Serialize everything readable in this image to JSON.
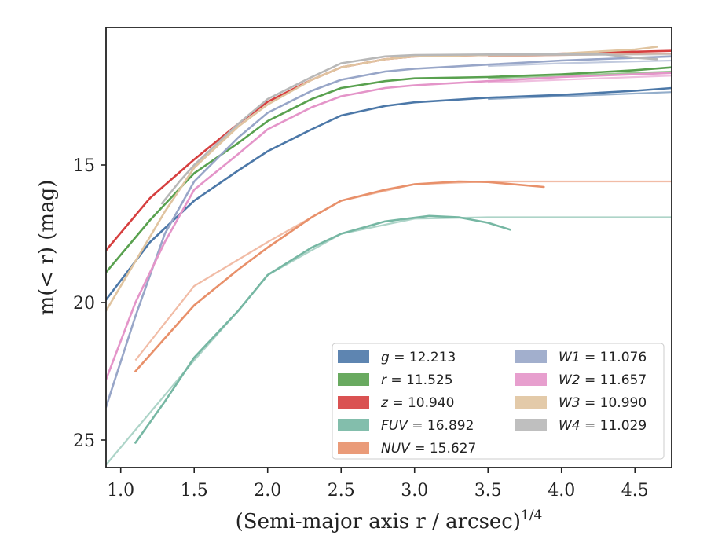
{
  "chart_data": {
    "type": "line",
    "title": "",
    "xlabel": "(Semi-major axis r / arcsec)",
    "xlabel_exponent": "1/4",
    "ylabel": "m(< r) (mag)",
    "xlim": [
      0.9,
      4.75
    ],
    "ylim": [
      26.0,
      10.0
    ],
    "y_inverted": true,
    "grid": false,
    "legend_position": "lower-right",
    "xticks": [
      1.0,
      1.5,
      2.0,
      2.5,
      3.0,
      3.5,
      4.0,
      4.5
    ],
    "xtick_labels": [
      "1.0",
      "1.5",
      "2.0",
      "2.5",
      "3.0",
      "3.5",
      "4.0",
      "4.5"
    ],
    "yticks": [
      15,
      20,
      25
    ],
    "ytick_labels": [
      "15",
      "20",
      "25"
    ],
    "series": [
      {
        "name": "g",
        "value": "12.213",
        "color": "#4c78a8",
        "points": [
          [
            0.9,
            19.9
          ],
          [
            1.2,
            17.8
          ],
          [
            1.5,
            16.3
          ],
          [
            1.8,
            15.2
          ],
          [
            2.0,
            14.5
          ],
          [
            2.3,
            13.7
          ],
          [
            2.5,
            13.2
          ],
          [
            2.8,
            12.85
          ],
          [
            3.0,
            12.72
          ],
          [
            3.5,
            12.55
          ],
          [
            4.0,
            12.45
          ],
          [
            4.5,
            12.3
          ],
          [
            4.75,
            12.2
          ]
        ],
        "faint_points": [
          [
            3.5,
            12.6
          ],
          [
            4.0,
            12.5
          ],
          [
            4.75,
            12.35
          ]
        ]
      },
      {
        "name": "r",
        "value": "11.525",
        "color": "#59a14f",
        "points": [
          [
            0.9,
            18.9
          ],
          [
            1.2,
            17.0
          ],
          [
            1.5,
            15.3
          ],
          [
            1.8,
            14.2
          ],
          [
            2.0,
            13.4
          ],
          [
            2.3,
            12.6
          ],
          [
            2.5,
            12.2
          ],
          [
            2.8,
            11.95
          ],
          [
            3.0,
            11.85
          ],
          [
            3.5,
            11.8
          ],
          [
            4.0,
            11.7
          ],
          [
            4.5,
            11.55
          ],
          [
            4.75,
            11.45
          ]
        ],
        "faint_points": [
          [
            3.5,
            11.85
          ],
          [
            4.0,
            11.75
          ],
          [
            4.75,
            11.6
          ]
        ]
      },
      {
        "name": "z",
        "value": "10.940",
        "color": "#d63f3f",
        "points": [
          [
            0.9,
            18.1
          ],
          [
            1.2,
            16.2
          ],
          [
            1.5,
            14.8
          ],
          [
            1.8,
            13.5
          ],
          [
            2.0,
            12.7
          ],
          [
            2.3,
            11.9
          ],
          [
            2.5,
            11.45
          ],
          [
            2.8,
            11.15
          ],
          [
            3.0,
            11.05
          ],
          [
            3.5,
            11.0
          ],
          [
            4.0,
            10.95
          ],
          [
            4.5,
            10.88
          ],
          [
            4.75,
            10.85
          ]
        ],
        "faint_points": [
          [
            3.5,
            11.05
          ],
          [
            4.0,
            11.0
          ],
          [
            4.75,
            10.95
          ]
        ]
      },
      {
        "name": "FUV",
        "value": "16.892",
        "color": "#76b7a3",
        "points": [
          [
            1.1,
            25.1
          ],
          [
            1.3,
            23.6
          ],
          [
            1.5,
            22.0
          ],
          [
            1.8,
            20.3
          ],
          [
            2.0,
            19.0
          ],
          [
            2.3,
            18.0
          ],
          [
            2.5,
            17.5
          ],
          [
            2.8,
            17.05
          ],
          [
            3.1,
            16.85
          ],
          [
            3.3,
            16.9
          ],
          [
            3.5,
            17.1
          ],
          [
            3.65,
            17.35
          ]
        ],
        "faint_points": [
          [
            0.9,
            25.9
          ],
          [
            1.2,
            24.0
          ],
          [
            1.5,
            22.1
          ],
          [
            1.8,
            20.3
          ],
          [
            2.0,
            19.0
          ],
          [
            2.5,
            17.5
          ],
          [
            3.0,
            16.95
          ],
          [
            3.5,
            16.9
          ],
          [
            4.0,
            16.9
          ],
          [
            4.75,
            16.9
          ]
        ]
      },
      {
        "name": "NUV",
        "value": "15.627",
        "color": "#e8906a",
        "points": [
          [
            1.1,
            22.5
          ],
          [
            1.3,
            21.3
          ],
          [
            1.5,
            20.1
          ],
          [
            1.8,
            18.8
          ],
          [
            2.0,
            18.0
          ],
          [
            2.3,
            16.9
          ],
          [
            2.5,
            16.3
          ],
          [
            2.8,
            15.9
          ],
          [
            3.0,
            15.7
          ],
          [
            3.3,
            15.6
          ],
          [
            3.5,
            15.62
          ],
          [
            3.88,
            15.8
          ]
        ],
        "faint_points": [
          [
            1.1,
            22.1
          ],
          [
            1.5,
            19.4
          ],
          [
            2.0,
            17.8
          ],
          [
            2.5,
            16.3
          ],
          [
            3.0,
            15.7
          ],
          [
            3.5,
            15.6
          ],
          [
            4.0,
            15.6
          ],
          [
            4.75,
            15.6
          ]
        ]
      },
      {
        "name": "W1",
        "value": "11.076",
        "color": "#98a6c8",
        "points": [
          [
            0.9,
            23.8
          ],
          [
            1.1,
            20.5
          ],
          [
            1.3,
            17.5
          ],
          [
            1.5,
            15.6
          ],
          [
            1.8,
            14.0
          ],
          [
            2.0,
            13.1
          ],
          [
            2.3,
            12.3
          ],
          [
            2.5,
            11.9
          ],
          [
            2.8,
            11.6
          ],
          [
            3.0,
            11.5
          ],
          [
            3.5,
            11.35
          ],
          [
            4.0,
            11.2
          ],
          [
            4.75,
            11.05
          ]
        ],
        "faint_points": [
          [
            3.5,
            11.4
          ],
          [
            4.0,
            11.3
          ],
          [
            4.75,
            11.2
          ]
        ]
      },
      {
        "name": "W2",
        "value": "11.657",
        "color": "#e495c9",
        "points": [
          [
            0.9,
            22.8
          ],
          [
            1.1,
            20.0
          ],
          [
            1.3,
            17.8
          ],
          [
            1.5,
            15.9
          ],
          [
            1.8,
            14.6
          ],
          [
            2.0,
            13.7
          ],
          [
            2.3,
            12.9
          ],
          [
            2.5,
            12.5
          ],
          [
            2.8,
            12.2
          ],
          [
            3.0,
            12.1
          ],
          [
            3.5,
            11.95
          ],
          [
            4.0,
            11.8
          ],
          [
            4.75,
            11.65
          ]
        ],
        "faint_points": [
          [
            3.5,
            12.0
          ],
          [
            4.0,
            11.9
          ],
          [
            4.75,
            11.75
          ]
        ]
      },
      {
        "name": "W3",
        "value": "10.990",
        "color": "#e0c4a0",
        "points": [
          [
            0.9,
            20.3
          ],
          [
            1.1,
            18.5
          ],
          [
            1.3,
            16.7
          ],
          [
            1.5,
            15.1
          ],
          [
            1.8,
            13.6
          ],
          [
            2.0,
            12.8
          ],
          [
            2.3,
            11.9
          ],
          [
            2.5,
            11.45
          ],
          [
            2.8,
            11.15
          ],
          [
            3.0,
            11.05
          ],
          [
            3.5,
            11.0
          ],
          [
            4.0,
            10.95
          ],
          [
            4.5,
            10.8
          ],
          [
            4.65,
            10.7
          ]
        ],
        "faint_points": [
          [
            3.5,
            11.05
          ],
          [
            4.0,
            11.0
          ],
          [
            4.75,
            10.95
          ]
        ]
      },
      {
        "name": "W4",
        "value": "11.029",
        "color": "#b8b8b8",
        "points": [
          [
            1.28,
            16.4
          ],
          [
            1.4,
            15.6
          ],
          [
            1.5,
            15.0
          ],
          [
            1.8,
            13.5
          ],
          [
            2.0,
            12.6
          ],
          [
            2.3,
            11.8
          ],
          [
            2.5,
            11.3
          ],
          [
            2.8,
            11.05
          ],
          [
            3.0,
            11.0
          ],
          [
            3.5,
            10.98
          ],
          [
            4.0,
            10.97
          ],
          [
            4.3,
            10.98
          ],
          [
            4.5,
            11.1
          ],
          [
            4.65,
            11.15
          ]
        ],
        "faint_points": [
          [
            3.5,
            11.0
          ],
          [
            4.0,
            11.0
          ],
          [
            4.75,
            10.98
          ]
        ]
      }
    ]
  }
}
